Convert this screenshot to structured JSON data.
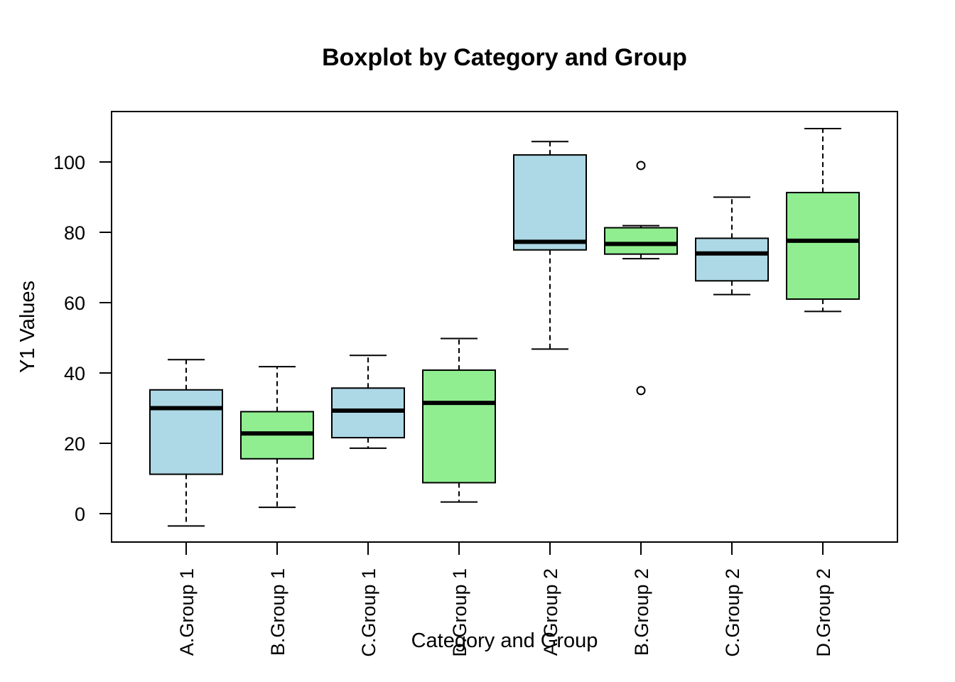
{
  "chart_data": {
    "type": "boxplot",
    "title": "Boxplot by Category and Group",
    "xlabel": "Category and Group",
    "ylabel": "Y1 Values",
    "ylim": [
      -8,
      115
    ],
    "y_ticks": [
      0,
      20,
      40,
      60,
      80,
      100
    ],
    "grid": false,
    "colors": {
      "light_blue": "#add8e6",
      "light_green": "#90ee90",
      "stroke": "#000000"
    },
    "categories": [
      "A.Group 1",
      "B.Group 1",
      "C.Group 1",
      "D.Group 1",
      "A.Group 2",
      "B.Group 2",
      "C.Group 2",
      "D.Group 2"
    ],
    "boxes": [
      {
        "label": "A.Group 1",
        "fill": "#add8e6",
        "whisker_low": -3.5,
        "q1": 11.2,
        "median": 30.0,
        "q3": 35.2,
        "whisker_high": 43.8,
        "outliers": []
      },
      {
        "label": "B.Group 1",
        "fill": "#90ee90",
        "whisker_low": 1.8,
        "q1": 15.6,
        "median": 22.8,
        "q3": 29.0,
        "whisker_high": 41.8,
        "outliers": []
      },
      {
        "label": "C.Group 1",
        "fill": "#add8e6",
        "whisker_low": 18.6,
        "q1": 21.6,
        "median": 29.3,
        "q3": 35.7,
        "whisker_high": 45.0,
        "outliers": []
      },
      {
        "label": "D.Group 1",
        "fill": "#90ee90",
        "whisker_low": 3.3,
        "q1": 8.8,
        "median": 31.5,
        "q3": 40.8,
        "whisker_high": 49.8,
        "outliers": []
      },
      {
        "label": "A.Group 2",
        "fill": "#add8e6",
        "whisker_low": 46.8,
        "q1": 75.0,
        "median": 77.3,
        "q3": 102.0,
        "whisker_high": 105.8,
        "outliers": []
      },
      {
        "label": "B.Group 2",
        "fill": "#90ee90",
        "whisker_low": 72.5,
        "q1": 73.8,
        "median": 76.7,
        "q3": 81.3,
        "whisker_high": 81.9,
        "outliers": [
          99.0,
          35.0
        ]
      },
      {
        "label": "C.Group 2",
        "fill": "#add8e6",
        "whisker_low": 62.3,
        "q1": 66.2,
        "median": 74.0,
        "q3": 78.3,
        "whisker_high": 90.0,
        "outliers": []
      },
      {
        "label": "D.Group 2",
        "fill": "#90ee90",
        "whisker_low": 57.5,
        "q1": 61.0,
        "median": 77.6,
        "q3": 91.3,
        "whisker_high": 109.5,
        "outliers": []
      }
    ]
  }
}
